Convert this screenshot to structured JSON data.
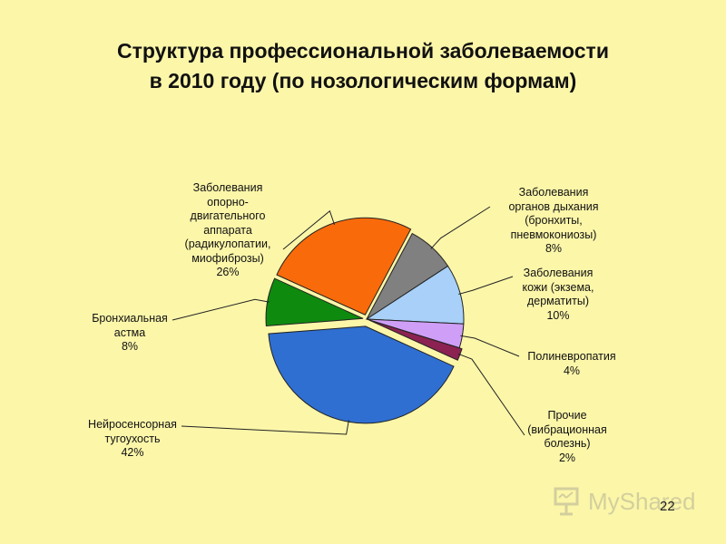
{
  "slide": {
    "title_line1": "Структура профессиональной заболеваемости",
    "title_line2": "в 2010 году (по нозологическим формам)",
    "page_number": "22",
    "watermark": "MyShared"
  },
  "colors": {
    "background": "#fcf6a9",
    "respiratory": "#808080",
    "skin": "#a8d0f8",
    "polyneuropathy": "#cf9ff8",
    "other": "#8b2252",
    "hearing": "#2f6fd2",
    "asthma": "#0e8a0e",
    "musculoskeletal": "#f96a0a"
  },
  "chart_data": {
    "type": "pie",
    "slices": [
      {
        "key": "respiratory",
        "label": [
          "Заболевания",
          "органов дыхания",
          "(бронхиты,",
          "пневмокониозы)"
        ],
        "pct_text": "8%",
        "value": 8,
        "color": "#808080"
      },
      {
        "key": "skin",
        "label": [
          "Заболевания",
          "кожи (экзема,",
          "дерматиты)"
        ],
        "pct_text": "10%",
        "value": 10,
        "color": "#a8d0f8"
      },
      {
        "key": "polyneuropathy",
        "label": [
          "Полиневропатия"
        ],
        "pct_text": "4%",
        "value": 4,
        "color": "#cf9ff8"
      },
      {
        "key": "other",
        "label": [
          "Прочие",
          "(вибрационная",
          "болезнь)"
        ],
        "pct_text": "2%",
        "value": 2,
        "color": "#8b2252"
      },
      {
        "key": "hearing",
        "label": [
          "Нейросенсорная",
          "тугоухость"
        ],
        "pct_text": "42%",
        "value": 42,
        "color": "#2f6fd2"
      },
      {
        "key": "asthma",
        "label": [
          "Бронхиальная",
          "астма"
        ],
        "pct_text": "8%",
        "value": 8,
        "color": "#0e8a0e"
      },
      {
        "key": "musculoskeletal",
        "label": [
          "Заболевания",
          "опорно-",
          "двигательного",
          "аппарата",
          "(радикулопатии,",
          "миофиброзы)"
        ],
        "pct_text": "26%",
        "value": 26,
        "color": "#f96a0a"
      }
    ]
  }
}
